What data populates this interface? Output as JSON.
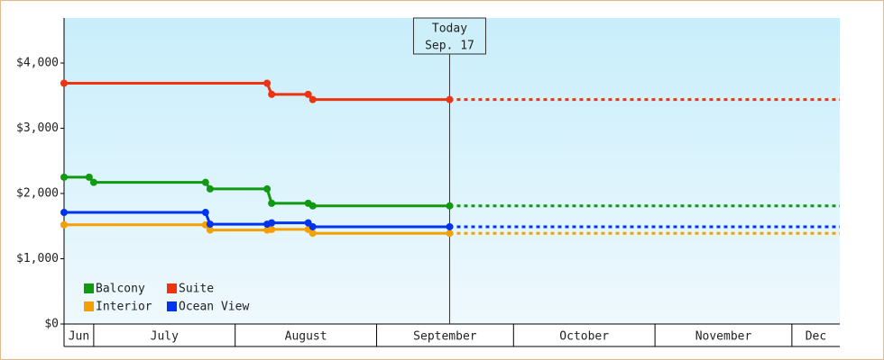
{
  "chart_data": {
    "type": "line",
    "xlim": [
      23.5,
      193.5
    ],
    "ylim": [
      0,
      4690
    ],
    "yticks": [
      {
        "value": 0,
        "label": "$0"
      },
      {
        "value": 1000,
        "label": "$1,000"
      },
      {
        "value": 2000,
        "label": "$2,000"
      },
      {
        "value": 3000,
        "label": "$3,000"
      },
      {
        "value": 4000,
        "label": "$4,000"
      }
    ],
    "grid": false,
    "months": [
      {
        "label": "Jun",
        "start": 23.5,
        "end": 30
      },
      {
        "label": "July",
        "start": 30,
        "end": 61
      },
      {
        "label": "August",
        "start": 61,
        "end": 92
      },
      {
        "label": "September",
        "start": 92,
        "end": 122
      },
      {
        "label": "October",
        "start": 122,
        "end": 153
      },
      {
        "label": "November",
        "start": 153,
        "end": 183
      },
      {
        "label": "Dec",
        "start": 183,
        "end": 193.5
      }
    ],
    "today": {
      "x": 108,
      "lines": [
        "Today",
        "Sep. 17"
      ]
    },
    "legend": "lower left",
    "series": [
      {
        "name": "Balcony",
        "color": "#119911",
        "x": [
          23.5,
          29,
          30,
          54.5,
          55.5,
          68,
          69,
          77,
          78,
          108
        ],
        "values": [
          2250,
          2250,
          2170,
          2170,
          2070,
          2070,
          1850,
          1850,
          1810,
          1810
        ]
      },
      {
        "name": "Suite",
        "color": "#ee3311",
        "x": [
          23.5,
          68,
          69,
          77,
          78,
          108
        ],
        "values": [
          3690,
          3690,
          3520,
          3520,
          3440,
          3440
        ]
      },
      {
        "name": "Interior",
        "color": "#f5a000",
        "x": [
          23.5,
          54.5,
          55.5,
          68,
          69,
          77,
          78,
          108
        ],
        "values": [
          1520,
          1520,
          1440,
          1440,
          1450,
          1450,
          1390,
          1390
        ]
      },
      {
        "name": "Ocean View",
        "color": "#0033ee",
        "x": [
          23.5,
          54.5,
          55.5,
          68,
          69,
          77,
          78,
          108
        ],
        "values": [
          1710,
          1710,
          1530,
          1530,
          1550,
          1550,
          1490,
          1490
        ]
      }
    ]
  }
}
